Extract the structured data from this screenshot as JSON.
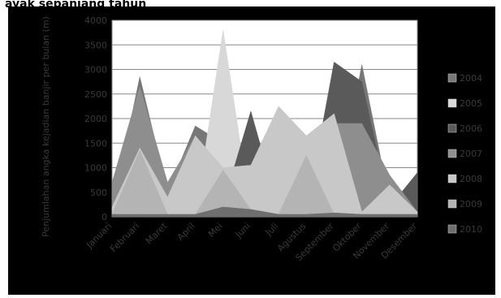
{
  "page": {
    "title": "ayak sepanjang tahun"
  },
  "chart_data": {
    "type": "area",
    "title": "",
    "xlabel": "",
    "ylabel": "Penjumlahan angka kejadian banjir per bulan (m)",
    "ylim": [
      0,
      4000
    ],
    "yticks": [
      "0",
      "500",
      "1000",
      "1500",
      "2000",
      "2500",
      "3000",
      "3500",
      "4000"
    ],
    "categories": [
      "Januari",
      "Februari",
      "Maret",
      "April",
      "Mei",
      "Juni",
      "Juli",
      "Agustus",
      "September",
      "Oktober",
      "November",
      "Desember"
    ],
    "legend_position": "right",
    "grid": true,
    "series": [
      {
        "name": "2004",
        "color": "#777777",
        "values": [
          150,
          2850,
          500,
          1850,
          1500,
          150,
          100,
          50,
          100,
          3100,
          300,
          50
        ]
      },
      {
        "name": "2005",
        "color": "#d8d8d8",
        "values": [
          50,
          100,
          100,
          50,
          3800,
          100,
          50,
          50,
          50,
          50,
          50,
          50
        ]
      },
      {
        "name": "2006",
        "color": "#5a5a5a",
        "values": [
          300,
          200,
          150,
          100,
          250,
          2150,
          150,
          100,
          3150,
          2750,
          200,
          900
        ]
      },
      {
        "name": "2007",
        "color": "#8e8e8e",
        "values": [
          700,
          2650,
          700,
          1650,
          800,
          900,
          100,
          50,
          1900,
          1900,
          850,
          100
        ]
      },
      {
        "name": "2008",
        "color": "#c8c8c8",
        "values": [
          200,
          1400,
          400,
          1650,
          1000,
          1050,
          2250,
          1650,
          2100,
          100,
          650,
          100
        ]
      },
      {
        "name": "2009",
        "color": "#b4b4b4",
        "values": [
          50,
          1350,
          50,
          50,
          950,
          150,
          50,
          1250,
          50,
          50,
          50,
          50
        ]
      },
      {
        "name": "2010",
        "color": "#6e6e6e",
        "values": [
          50,
          50,
          50,
          50,
          200,
          150,
          50,
          50,
          80,
          50,
          50,
          50
        ]
      }
    ]
  }
}
